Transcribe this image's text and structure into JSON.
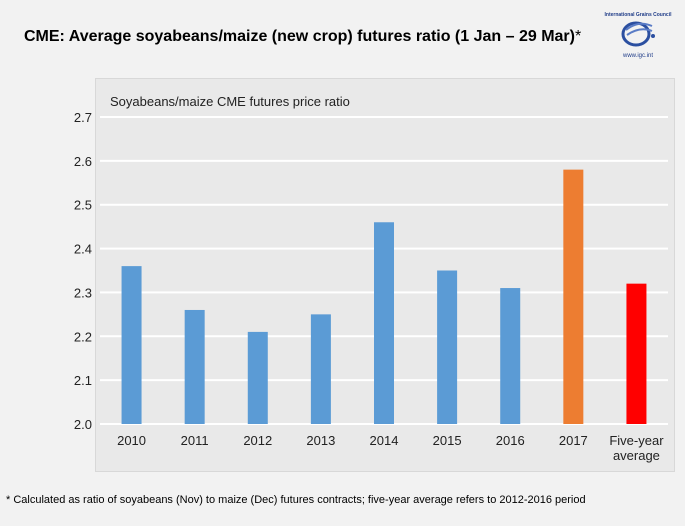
{
  "header": {
    "title": "CME: Average soyabeans/maize (new crop) futures ratio (1 Jan – 29 Mar)",
    "title_suffix": "*"
  },
  "logo": {
    "org": "International Grains Council",
    "url": "www.igc.int"
  },
  "footnote": "* Calculated as ratio of soyabeans (Nov) to maize (Dec) futures contracts; five-year average refers to 2012-2016 period",
  "chart_data": {
    "type": "bar",
    "title": "Soyabeans/maize CME futures price ratio",
    "categories": [
      "2010",
      "2011",
      "2012",
      "2013",
      "2014",
      "2015",
      "2016",
      "2017",
      "Five-year average"
    ],
    "category_lines": [
      [
        "2010"
      ],
      [
        "2011"
      ],
      [
        "2012"
      ],
      [
        "2013"
      ],
      [
        "2014"
      ],
      [
        "2015"
      ],
      [
        "2016"
      ],
      [
        "2017"
      ],
      [
        "Five-year",
        "average"
      ]
    ],
    "values": [
      2.36,
      2.26,
      2.21,
      2.25,
      2.46,
      2.35,
      2.31,
      2.58,
      2.32
    ],
    "colors": [
      "#5b9bd5",
      "#5b9bd5",
      "#5b9bd5",
      "#5b9bd5",
      "#5b9bd5",
      "#5b9bd5",
      "#5b9bd5",
      "#ed7d31",
      "#ff0000"
    ],
    "ylim": [
      2.0,
      2.7
    ],
    "yticks": [
      "2.0",
      "2.1",
      "2.2",
      "2.3",
      "2.4",
      "2.5",
      "2.6",
      "2.7"
    ],
    "grid": true,
    "legend": "none"
  }
}
